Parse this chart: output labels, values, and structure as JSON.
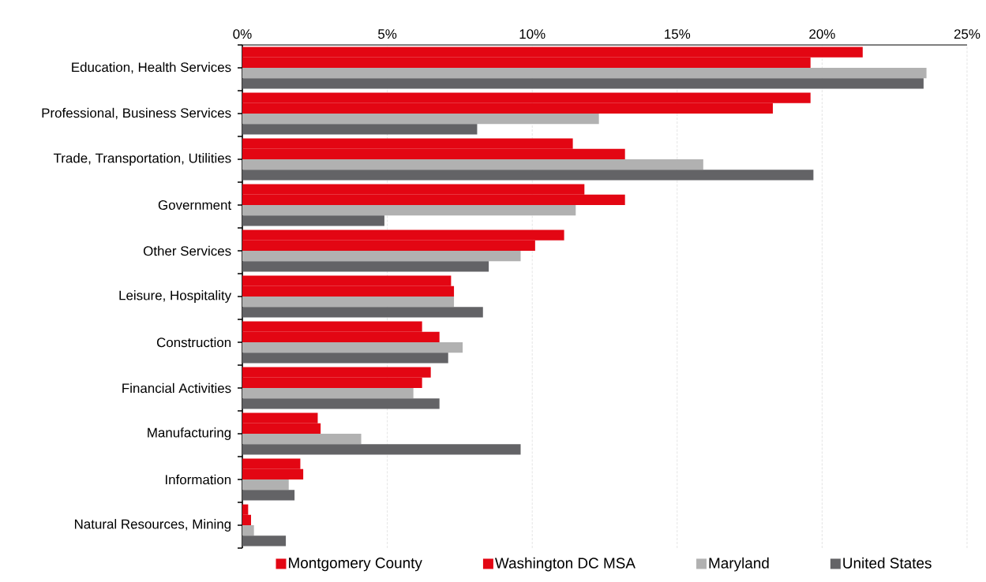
{
  "chart_data": {
    "type": "bar",
    "orientation": "horizontal",
    "categories": [
      "Education, Health Services",
      "Professional, Business Services",
      "Trade, Transportation, Utilities",
      "Government",
      "Other Services",
      "Leisure, Hospitality",
      "Construction",
      "Financial Activities",
      "Manufacturing",
      "Information",
      "Natural Resources, Mining"
    ],
    "series": [
      {
        "name": "Montgomery County",
        "color": "#e30613",
        "values": [
          21.4,
          19.6,
          11.4,
          11.8,
          11.1,
          7.2,
          6.2,
          6.5,
          2.6,
          2.0,
          0.2
        ]
      },
      {
        "name": "Washington DC MSA",
        "color": "#e30613",
        "values": [
          19.6,
          18.3,
          13.2,
          13.2,
          10.1,
          7.3,
          6.8,
          6.2,
          2.7,
          2.1,
          0.3
        ]
      },
      {
        "name": "Maryland",
        "color": "#b1b1b1",
        "values": [
          23.6,
          12.3,
          15.9,
          11.5,
          9.6,
          7.3,
          7.6,
          5.9,
          4.1,
          1.6,
          0.4
        ]
      },
      {
        "name": "United States",
        "color": "#636366",
        "values": [
          23.5,
          8.1,
          19.7,
          4.9,
          8.5,
          8.3,
          7.1,
          6.8,
          9.6,
          1.8,
          1.5
        ]
      }
    ],
    "xlim": [
      0,
      25
    ],
    "xticks": [
      {
        "value": 0,
        "label": "0%"
      },
      {
        "value": 5,
        "label": "5%"
      },
      {
        "value": 10,
        "label": "10%"
      },
      {
        "value": 15,
        "label": "15%"
      },
      {
        "value": 20,
        "label": "20%"
      },
      {
        "value": 25,
        "label": "25%"
      }
    ],
    "grid": "x",
    "legend": "bottom"
  }
}
